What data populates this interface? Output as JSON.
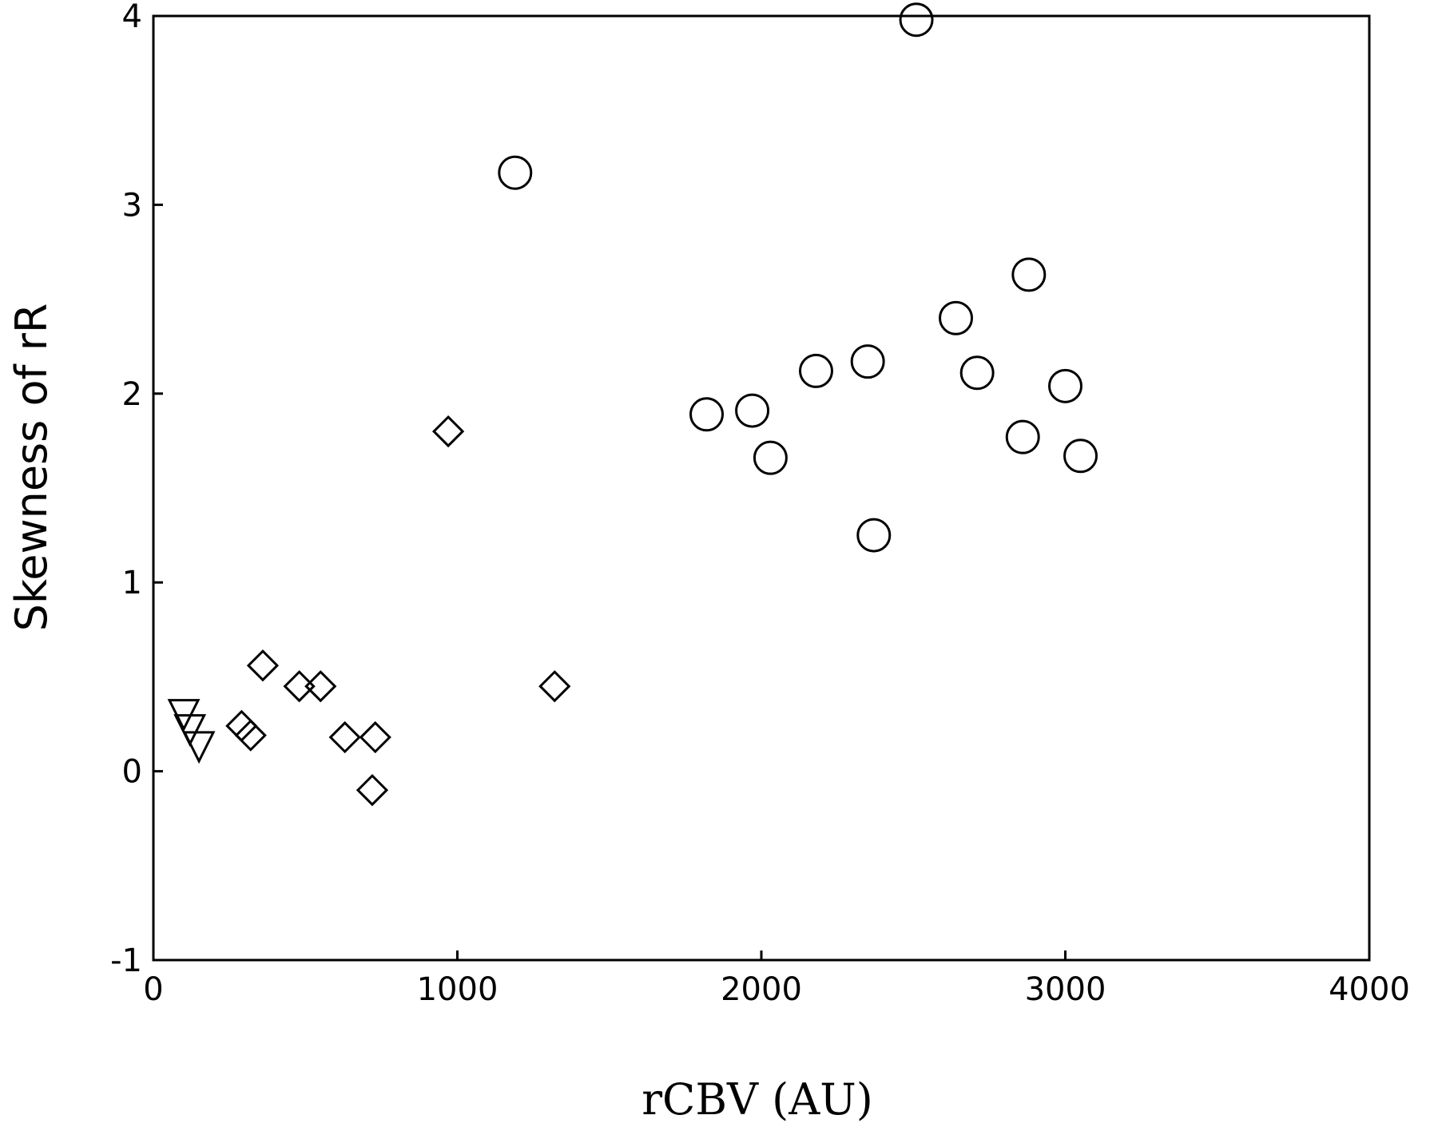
{
  "chart_data": {
    "type": "scatter",
    "xlabel": "rCBV (AU)",
    "ylabel": "Skewness of rR",
    "xlim": [
      0,
      4000
    ],
    "ylim": [
      -1,
      4
    ],
    "x_ticks": [
      0,
      1000,
      2000,
      3000,
      4000
    ],
    "y_ticks": [
      -1,
      0,
      1,
      2,
      3,
      4
    ],
    "grid": false,
    "legend": "none",
    "series": [
      {
        "marker": "circle",
        "points": [
          {
            "x": 2510,
            "y": 3.98
          },
          {
            "x": 1190,
            "y": 3.17
          },
          {
            "x": 2880,
            "y": 2.63
          },
          {
            "x": 2640,
            "y": 2.4
          },
          {
            "x": 2350,
            "y": 2.17
          },
          {
            "x": 2180,
            "y": 2.12
          },
          {
            "x": 2710,
            "y": 2.11
          },
          {
            "x": 3000,
            "y": 2.04
          },
          {
            "x": 1970,
            "y": 1.91
          },
          {
            "x": 1820,
            "y": 1.89
          },
          {
            "x": 2860,
            "y": 1.77
          },
          {
            "x": 2030,
            "y": 1.66
          },
          {
            "x": 3050,
            "y": 1.67
          },
          {
            "x": 2370,
            "y": 1.25
          }
        ]
      },
      {
        "marker": "diamond",
        "points": [
          {
            "x": 970,
            "y": 1.8
          },
          {
            "x": 360,
            "y": 0.56
          },
          {
            "x": 480,
            "y": 0.45
          },
          {
            "x": 550,
            "y": 0.45
          },
          {
            "x": 1320,
            "y": 0.45
          },
          {
            "x": 290,
            "y": 0.24
          },
          {
            "x": 320,
            "y": 0.19
          },
          {
            "x": 630,
            "y": 0.18
          },
          {
            "x": 730,
            "y": 0.18
          },
          {
            "x": 720,
            "y": -0.1
          }
        ]
      },
      {
        "marker": "triangle",
        "points": [
          {
            "x": 100,
            "y": 0.3
          },
          {
            "x": 120,
            "y": 0.22
          },
          {
            "x": 150,
            "y": 0.13
          }
        ]
      }
    ]
  }
}
